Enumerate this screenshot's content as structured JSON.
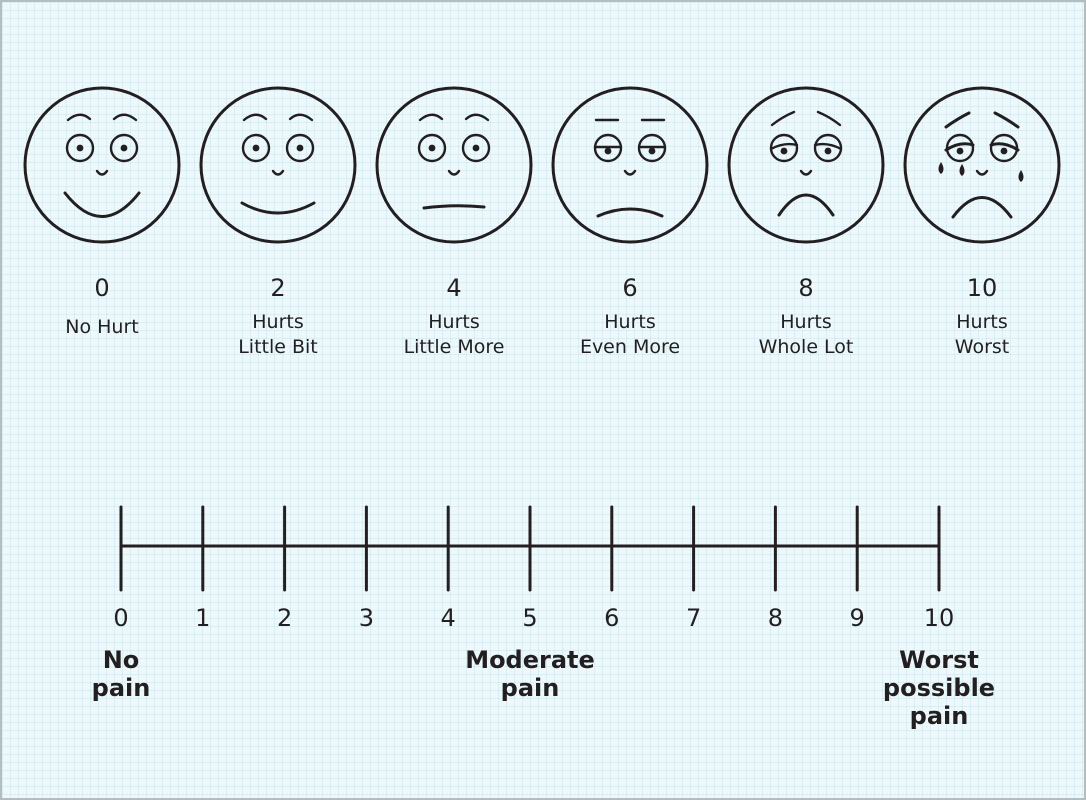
{
  "faces_scale": {
    "faces": [
      {
        "score": "0",
        "label_lines": [
          "No Hurt"
        ],
        "expression": "big-smile"
      },
      {
        "score": "2",
        "label_lines": [
          "Hurts",
          "Little Bit"
        ],
        "expression": "smile"
      },
      {
        "score": "4",
        "label_lines": [
          "Hurts",
          "Little More"
        ],
        "expression": "neutral"
      },
      {
        "score": "6",
        "label_lines": [
          "Hurts",
          "Even More"
        ],
        "expression": "slight-frown"
      },
      {
        "score": "8",
        "label_lines": [
          "Hurts",
          "Whole Lot"
        ],
        "expression": "frown"
      },
      {
        "score": "10",
        "label_lines": [
          "Hurts",
          "Worst"
        ],
        "expression": "crying"
      }
    ]
  },
  "numeric_scale": {
    "min": 0,
    "max": 10,
    "ticks": [
      "0",
      "1",
      "2",
      "3",
      "4",
      "5",
      "6",
      "7",
      "8",
      "9",
      "10"
    ],
    "anchors": [
      {
        "value": 0,
        "lines": [
          "No",
          "pain"
        ]
      },
      {
        "value": 5,
        "lines": [
          "Moderate",
          "pain"
        ]
      },
      {
        "value": 10,
        "lines": [
          "Worst",
          "possible",
          "pain"
        ]
      }
    ]
  },
  "colors": {
    "background": "#eef8fb",
    "ink": "#231f20",
    "border": "#b4bcbe"
  }
}
